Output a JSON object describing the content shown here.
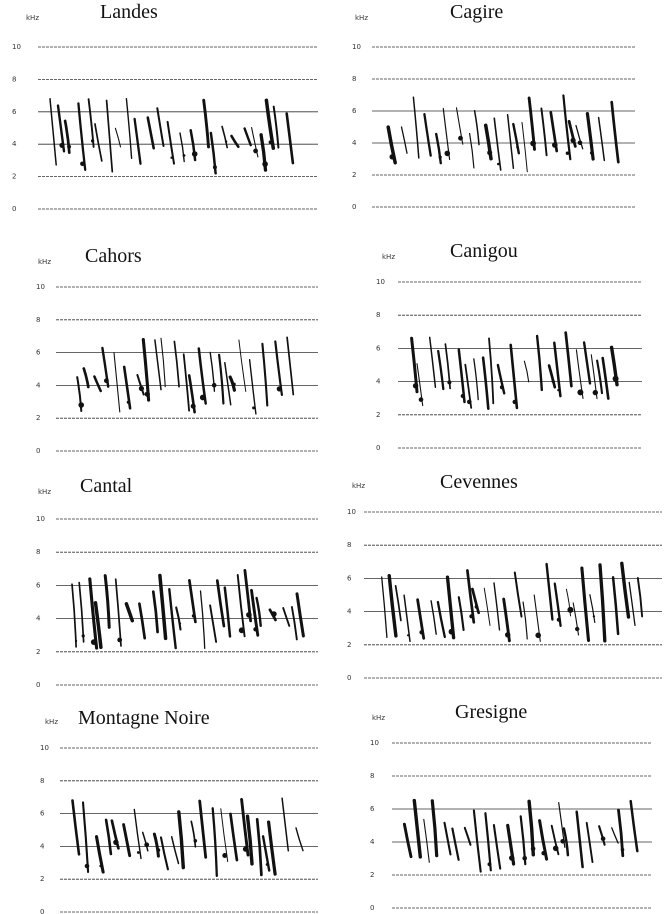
{
  "chart_data": [
    {
      "type": "spectrogram",
      "title": "Landes",
      "ylabel": "kHz",
      "ylim": [
        0,
        10
      ],
      "yticks": [
        0,
        2,
        4,
        6,
        8,
        10
      ],
      "grid": true
    },
    {
      "type": "spectrogram",
      "title": "Cagire",
      "ylabel": "kHz",
      "ylim": [
        0,
        10
      ],
      "yticks": [
        0,
        2,
        4,
        6,
        8,
        10
      ],
      "grid": true
    },
    {
      "type": "spectrogram",
      "title": "Cahors",
      "ylabel": "kHz",
      "ylim": [
        0,
        10
      ],
      "yticks": [
        0,
        2,
        4,
        6,
        8,
        10
      ],
      "grid": true
    },
    {
      "type": "spectrogram",
      "title": "Canigou",
      "ylabel": "kHz",
      "ylim": [
        0,
        10
      ],
      "yticks": [
        0,
        2,
        4,
        6,
        8,
        10
      ],
      "grid": true
    },
    {
      "type": "spectrogram",
      "title": "Cantal",
      "ylabel": "kHz",
      "ylim": [
        0,
        10
      ],
      "yticks": [
        0,
        2,
        4,
        6,
        8,
        10
      ],
      "grid": true
    },
    {
      "type": "spectrogram",
      "title": "Cevennes",
      "ylabel": "kHz",
      "ylim": [
        0,
        10
      ],
      "yticks": [
        0,
        2,
        4,
        6,
        8,
        10
      ],
      "grid": true
    },
    {
      "type": "spectrogram",
      "title": "Montagne Noire",
      "ylabel": "kHz",
      "ylim": [
        0,
        10
      ],
      "yticks": [
        0,
        2,
        4,
        6,
        8,
        10
      ],
      "grid": true
    },
    {
      "type": "spectrogram",
      "title": "Gresigne",
      "ylabel": "kHz",
      "ylim": [
        0,
        10
      ],
      "yticks": [
        0,
        2,
        4,
        6,
        8,
        10
      ],
      "grid": true
    }
  ]
}
